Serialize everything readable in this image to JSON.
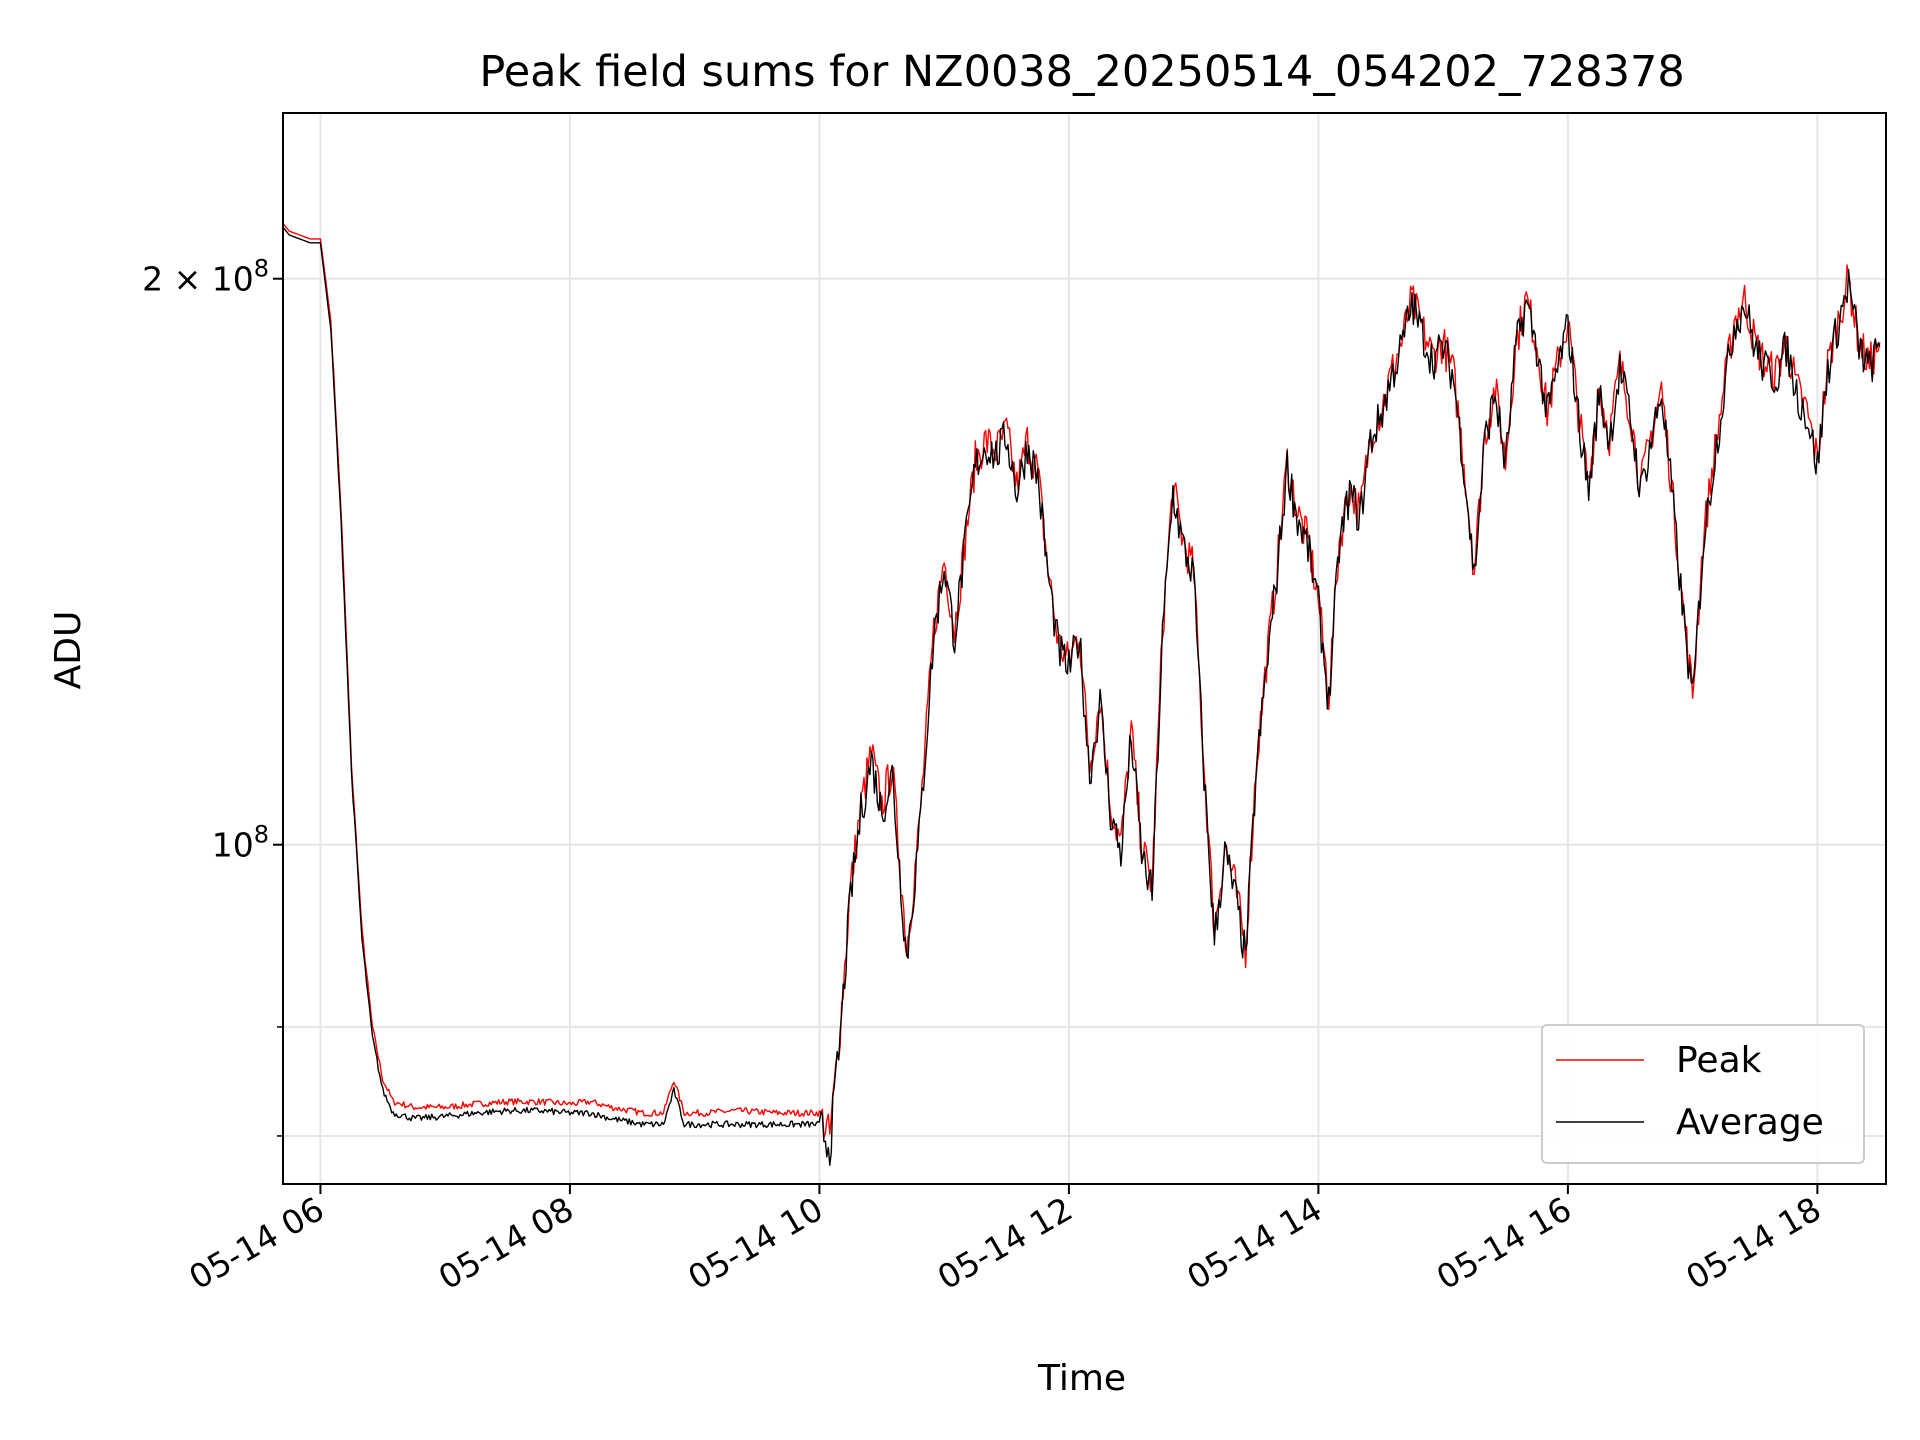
{
  "chart_data": {
    "type": "line",
    "title": "Peak field sums for NZ0038_20250514_054202_728378",
    "xlabel": "Time",
    "ylabel": "ADU",
    "y_scale": "log",
    "grid": true,
    "legend_position": "bottom-right",
    "xlim": [
      "2025-05-14 05:42",
      "2025-05-14 18:33"
    ],
    "ylim": [
      66000000,
      245000000
    ],
    "x_ticks": [
      "05-14 06",
      "05-14 08",
      "05-14 10",
      "05-14 12",
      "05-14 14",
      "05-14 16",
      "05-14 18"
    ],
    "y_ticks": [
      {
        "value": 100000000,
        "label": "10",
        "sup": "8"
      },
      {
        "value": 200000000,
        "label": "2 × 10",
        "sup": "8"
      }
    ],
    "series": [
      {
        "name": "Peak",
        "color": "#ff0000",
        "points": [
          [
            "05:42",
            214000000.0
          ],
          [
            "05:45",
            212000000.0
          ],
          [
            "05:50",
            211000000.0
          ],
          [
            "05:55",
            210000000.0
          ],
          [
            "06:00",
            210000000.0
          ],
          [
            "06:05",
            190000000.0
          ],
          [
            "06:10",
            150000000.0
          ],
          [
            "06:15",
            110000000.0
          ],
          [
            "06:20",
            90000000.0
          ],
          [
            "06:25",
            80000000.0
          ],
          [
            "06:30",
            75000000.0
          ],
          [
            "06:35",
            73000000.0
          ],
          [
            "06:45",
            72500000.0
          ],
          [
            "07:00",
            72500000.0
          ],
          [
            "07:15",
            72800000.0
          ],
          [
            "07:30",
            73000000.0
          ],
          [
            "07:45",
            73000000.0
          ],
          [
            "08:00",
            72800000.0
          ],
          [
            "08:10",
            73000000.0
          ],
          [
            "08:20",
            72500000.0
          ],
          [
            "08:35",
            72000000.0
          ],
          [
            "08:45",
            72000000.0
          ],
          [
            "08:50",
            75000000.0
          ],
          [
            "08:55",
            72000000.0
          ],
          [
            "09:05",
            72000000.0
          ],
          [
            "09:20",
            72200000.0
          ],
          [
            "09:40",
            72000000.0
          ],
          [
            "10:00",
            72000000.0
          ],
          [
            "10:05",
            70000000.0
          ],
          [
            "10:10",
            80000000.0
          ],
          [
            "10:15",
            95000000.0
          ],
          [
            "10:20",
            105000000.0
          ],
          [
            "10:25",
            112000000.0
          ],
          [
            "10:30",
            105000000.0
          ],
          [
            "10:35",
            110000000.0
          ],
          [
            "10:42",
            88000000.0
          ],
          [
            "10:48",
            102000000.0
          ],
          [
            "10:55",
            130000000.0
          ],
          [
            "11:00",
            142000000.0
          ],
          [
            "11:05",
            130000000.0
          ],
          [
            "11:10",
            145000000.0
          ],
          [
            "11:15",
            160000000.0
          ],
          [
            "11:20",
            164000000.0
          ],
          [
            "11:25",
            162000000.0
          ],
          [
            "11:30",
            166000000.0
          ],
          [
            "11:35",
            155000000.0
          ],
          [
            "11:40",
            164000000.0
          ],
          [
            "11:45",
            158000000.0
          ],
          [
            "11:50",
            140000000.0
          ],
          [
            "11:55",
            128000000.0
          ],
          [
            "12:00",
            125000000.0
          ],
          [
            "12:05",
            130000000.0
          ],
          [
            "12:10",
            110000000.0
          ],
          [
            "12:15",
            120000000.0
          ],
          [
            "12:20",
            105000000.0
          ],
          [
            "12:25",
            100000000.0
          ],
          [
            "12:30",
            115000000.0
          ],
          [
            "12:35",
            100000000.0
          ],
          [
            "12:40",
            95000000.0
          ],
          [
            "12:45",
            130000000.0
          ],
          [
            "12:50",
            155000000.0
          ],
          [
            "12:55",
            145000000.0
          ],
          [
            "13:00",
            140000000.0
          ],
          [
            "13:05",
            110000000.0
          ],
          [
            "13:10",
            90000000.0
          ],
          [
            "13:15",
            100000000.0
          ],
          [
            "13:20",
            95000000.0
          ],
          [
            "13:25",
            88000000.0
          ],
          [
            "13:30",
            110000000.0
          ],
          [
            "13:35",
            125000000.0
          ],
          [
            "13:40",
            140000000.0
          ],
          [
            "13:45",
            160000000.0
          ],
          [
            "13:50",
            150000000.0
          ],
          [
            "13:55",
            145000000.0
          ],
          [
            "14:00",
            135000000.0
          ],
          [
            "14:05",
            120000000.0
          ],
          [
            "14:10",
            145000000.0
          ],
          [
            "14:15",
            155000000.0
          ],
          [
            "14:20",
            150000000.0
          ],
          [
            "14:25",
            165000000.0
          ],
          [
            "14:30",
            170000000.0
          ],
          [
            "14:35",
            178000000.0
          ],
          [
            "14:40",
            185000000.0
          ],
          [
            "14:45",
            195000000.0
          ],
          [
            "14:50",
            188000000.0
          ],
          [
            "14:55",
            182000000.0
          ],
          [
            "15:00",
            185000000.0
          ],
          [
            "15:05",
            178000000.0
          ],
          [
            "15:10",
            160000000.0
          ],
          [
            "15:15",
            140000000.0
          ],
          [
            "15:20",
            165000000.0
          ],
          [
            "15:25",
            175000000.0
          ],
          [
            "15:30",
            160000000.0
          ],
          [
            "15:35",
            185000000.0
          ],
          [
            "15:40",
            195000000.0
          ],
          [
            "15:45",
            185000000.0
          ],
          [
            "15:50",
            170000000.0
          ],
          [
            "15:55",
            180000000.0
          ],
          [
            "16:00",
            190000000.0
          ],
          [
            "16:05",
            170000000.0
          ],
          [
            "16:10",
            155000000.0
          ],
          [
            "16:15",
            175000000.0
          ],
          [
            "16:20",
            165000000.0
          ],
          [
            "16:25",
            180000000.0
          ],
          [
            "16:30",
            170000000.0
          ],
          [
            "16:35",
            155000000.0
          ],
          [
            "16:40",
            165000000.0
          ],
          [
            "16:45",
            175000000.0
          ],
          [
            "16:50",
            155000000.0
          ],
          [
            "16:55",
            135000000.0
          ],
          [
            "17:00",
            120000000.0
          ],
          [
            "17:05",
            145000000.0
          ],
          [
            "17:10",
            160000000.0
          ],
          [
            "17:15",
            175000000.0
          ],
          [
            "17:20",
            190000000.0
          ],
          [
            "17:25",
            195000000.0
          ],
          [
            "17:30",
            185000000.0
          ],
          [
            "17:35",
            180000000.0
          ],
          [
            "17:40",
            178000000.0
          ],
          [
            "17:45",
            185000000.0
          ],
          [
            "17:50",
            175000000.0
          ],
          [
            "17:55",
            170000000.0
          ],
          [
            "18:00",
            160000000.0
          ],
          [
            "18:05",
            180000000.0
          ],
          [
            "18:10",
            190000000.0
          ],
          [
            "18:15",
            200000000.0
          ],
          [
            "18:20",
            185000000.0
          ],
          [
            "18:25",
            180000000.0
          ],
          [
            "18:30",
            185000000.0
          ]
        ]
      },
      {
        "name": "Average",
        "color": "#000000",
        "points": [
          [
            "05:42",
            213000000.0
          ],
          [
            "05:45",
            211000000.0
          ],
          [
            "05:50",
            210000000.0
          ],
          [
            "05:55",
            209000000.0
          ],
          [
            "06:00",
            209000000.0
          ],
          [
            "06:05",
            188000000.0
          ],
          [
            "06:10",
            148000000.0
          ],
          [
            "06:15",
            109000000.0
          ],
          [
            "06:20",
            89000000.0
          ],
          [
            "06:25",
            79000000.0
          ],
          [
            "06:30",
            74000000.0
          ],
          [
            "06:35",
            72000000.0
          ],
          [
            "06:45",
            71500000.0
          ],
          [
            "07:00",
            71700000.0
          ],
          [
            "07:15",
            72000000.0
          ],
          [
            "07:30",
            72200000.0
          ],
          [
            "07:45",
            72200000.0
          ],
          [
            "08:00",
            72000000.0
          ],
          [
            "08:10",
            72000000.0
          ],
          [
            "08:20",
            71500000.0
          ],
          [
            "08:35",
            71000000.0
          ],
          [
            "08:45",
            71000000.0
          ],
          [
            "08:50",
            74000000.0
          ],
          [
            "08:55",
            71000000.0
          ],
          [
            "09:05",
            71000000.0
          ],
          [
            "09:20",
            71000000.0
          ],
          [
            "09:40",
            71000000.0
          ],
          [
            "10:00",
            71000000.0
          ],
          [
            "10:05",
            69000000.0
          ],
          [
            "10:10",
            79000000.0
          ],
          [
            "10:15",
            94000000.0
          ],
          [
            "10:20",
            104000000.0
          ],
          [
            "10:25",
            111000000.0
          ],
          [
            "10:30",
            104000000.0
          ],
          [
            "10:35",
            109000000.0
          ],
          [
            "10:42",
            87000000.0
          ],
          [
            "10:48",
            101000000.0
          ],
          [
            "10:55",
            129000000.0
          ],
          [
            "11:00",
            141000000.0
          ],
          [
            "11:05",
            129000000.0
          ],
          [
            "11:10",
            144000000.0
          ],
          [
            "11:15",
            159000000.0
          ],
          [
            "11:20",
            163000000.0
          ],
          [
            "11:25",
            161000000.0
          ],
          [
            "11:30",
            165000000.0
          ],
          [
            "11:35",
            154000000.0
          ],
          [
            "11:40",
            163000000.0
          ],
          [
            "11:45",
            157000000.0
          ],
          [
            "11:50",
            139000000.0
          ],
          [
            "11:55",
            127000000.0
          ],
          [
            "12:00",
            124000000.0
          ],
          [
            "12:05",
            129000000.0
          ],
          [
            "12:10",
            109000000.0
          ],
          [
            "12:15",
            119000000.0
          ],
          [
            "12:20",
            104000000.0
          ],
          [
            "12:25",
            99000000.0
          ],
          [
            "12:30",
            114000000.0
          ],
          [
            "12:35",
            99000000.0
          ],
          [
            "12:40",
            94000000.0
          ],
          [
            "12:45",
            129000000.0
          ],
          [
            "12:50",
            154000000.0
          ],
          [
            "12:55",
            144000000.0
          ],
          [
            "13:00",
            139000000.0
          ],
          [
            "13:05",
            109000000.0
          ],
          [
            "13:10",
            89000000.0
          ],
          [
            "13:15",
            99000000.0
          ],
          [
            "13:20",
            94000000.0
          ],
          [
            "13:25",
            87000000.0
          ],
          [
            "13:30",
            109000000.0
          ],
          [
            "13:35",
            124000000.0
          ],
          [
            "13:40",
            139000000.0
          ],
          [
            "13:45",
            159000000.0
          ],
          [
            "13:50",
            149000000.0
          ],
          [
            "13:55",
            144000000.0
          ],
          [
            "14:00",
            134000000.0
          ],
          [
            "14:05",
            119000000.0
          ],
          [
            "14:10",
            144000000.0
          ],
          [
            "14:15",
            154000000.0
          ],
          [
            "14:20",
            149000000.0
          ],
          [
            "14:25",
            164000000.0
          ],
          [
            "14:30",
            169000000.0
          ],
          [
            "14:35",
            177000000.0
          ],
          [
            "14:40",
            184000000.0
          ],
          [
            "14:45",
            194000000.0
          ],
          [
            "14:50",
            187000000.0
          ],
          [
            "14:55",
            181000000.0
          ],
          [
            "15:00",
            184000000.0
          ],
          [
            "15:05",
            177000000.0
          ],
          [
            "15:10",
            159000000.0
          ],
          [
            "15:15",
            139000000.0
          ],
          [
            "15:20",
            164000000.0
          ],
          [
            "15:25",
            174000000.0
          ],
          [
            "15:30",
            159000000.0
          ],
          [
            "15:35",
            184000000.0
          ],
          [
            "15:40",
            194000000.0
          ],
          [
            "15:45",
            184000000.0
          ],
          [
            "15:50",
            169000000.0
          ],
          [
            "15:55",
            179000000.0
          ],
          [
            "16:00",
            189000000.0
          ],
          [
            "16:05",
            169000000.0
          ],
          [
            "16:10",
            154000000.0
          ],
          [
            "16:15",
            174000000.0
          ],
          [
            "16:20",
            164000000.0
          ],
          [
            "16:25",
            179000000.0
          ],
          [
            "16:30",
            169000000.0
          ],
          [
            "16:35",
            154000000.0
          ],
          [
            "16:40",
            164000000.0
          ],
          [
            "16:45",
            174000000.0
          ],
          [
            "16:50",
            154000000.0
          ],
          [
            "16:55",
            134000000.0
          ],
          [
            "17:00",
            119000000.0
          ],
          [
            "17:05",
            144000000.0
          ],
          [
            "17:10",
            159000000.0
          ],
          [
            "17:15",
            174000000.0
          ],
          [
            "17:20",
            189000000.0
          ],
          [
            "17:25",
            194000000.0
          ],
          [
            "17:30",
            184000000.0
          ],
          [
            "17:35",
            179000000.0
          ],
          [
            "17:40",
            177000000.0
          ],
          [
            "17:45",
            184000000.0
          ],
          [
            "17:50",
            174000000.0
          ],
          [
            "17:55",
            169000000.0
          ],
          [
            "18:00",
            159000000.0
          ],
          [
            "18:05",
            179000000.0
          ],
          [
            "18:10",
            189000000.0
          ],
          [
            "18:15",
            199000000.0
          ],
          [
            "18:20",
            184000000.0
          ],
          [
            "18:25",
            179000000.0
          ],
          [
            "18:30",
            184000000.0
          ]
        ]
      }
    ]
  }
}
